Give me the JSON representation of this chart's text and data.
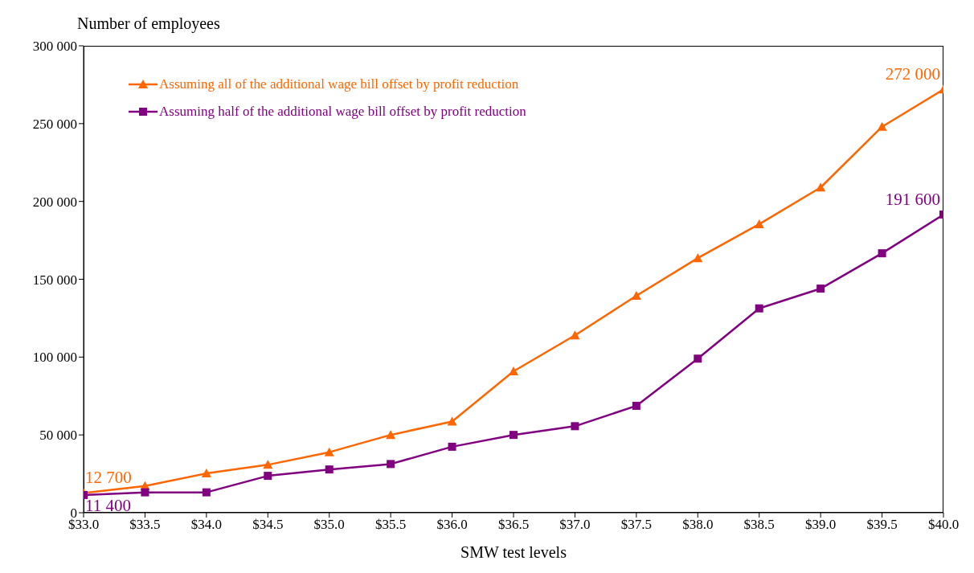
{
  "chart_data": {
    "type": "line",
    "ylabel": "Number of employees",
    "xlabel": "SMW test levels",
    "x": [
      33.0,
      33.5,
      34.0,
      34.5,
      35.0,
      35.5,
      36.0,
      36.5,
      37.0,
      37.5,
      38.0,
      38.5,
      39.0,
      39.5,
      40.0
    ],
    "series": [
      {
        "name": "Assuming all of the additional wage bill offset by profit reduction",
        "color": "#ff6600",
        "marker": "triangle",
        "values": [
          12700,
          17200,
          25300,
          30800,
          38900,
          50000,
          58600,
          90900,
          114000,
          139400,
          163600,
          185400,
          209000,
          248000,
          272000
        ],
        "value_labels": [
          "12 700",
          null,
          null,
          null,
          null,
          null,
          null,
          null,
          null,
          null,
          null,
          null,
          null,
          null,
          "272 000"
        ]
      },
      {
        "name": "Assuming half of the additional wage bill offset by profit reduction",
        "color": "#800080",
        "marker": "square",
        "values": [
          11400,
          13100,
          13100,
          23700,
          27800,
          31300,
          42400,
          50000,
          55600,
          68700,
          99000,
          131300,
          144000,
          166700,
          191600
        ],
        "value_labels": [
          "11 400",
          null,
          null,
          null,
          null,
          null,
          null,
          null,
          null,
          null,
          null,
          null,
          null,
          null,
          "191 600"
        ]
      }
    ],
    "xlim": [
      33.0,
      40.0
    ],
    "xticks": [
      {
        "value": 33.0,
        "label": "$33.0"
      },
      {
        "value": 33.5,
        "label": "$33.5"
      },
      {
        "value": 34.0,
        "label": "$34.0"
      },
      {
        "value": 34.5,
        "label": "$34.5"
      },
      {
        "value": 35.0,
        "label": "$35.0"
      },
      {
        "value": 35.5,
        "label": "$35.5"
      },
      {
        "value": 36.0,
        "label": "$36.0"
      },
      {
        "value": 36.5,
        "label": "$36.5"
      },
      {
        "value": 37.0,
        "label": "$37.0"
      },
      {
        "value": 37.5,
        "label": "$37.5"
      },
      {
        "value": 38.0,
        "label": "$38.0"
      },
      {
        "value": 38.5,
        "label": "$38.5"
      },
      {
        "value": 39.0,
        "label": "$39.0"
      },
      {
        "value": 39.5,
        "label": "$39.5"
      },
      {
        "value": 40.0,
        "label": "$40.0"
      }
    ],
    "ylim": [
      0,
      300000
    ],
    "yticks": [
      0,
      {
        "value": 50000,
        "label": "50 000"
      },
      {
        "value": 100000,
        "label": "100 000"
      },
      {
        "value": 150000,
        "label": "150 000"
      },
      {
        "value": 200000,
        "label": "200 000"
      },
      {
        "value": 250000,
        "label": "250 000"
      },
      {
        "value": 300000,
        "label": "300 000"
      }
    ],
    "grid": false,
    "legend": "top left",
    "line_style": "solid"
  }
}
